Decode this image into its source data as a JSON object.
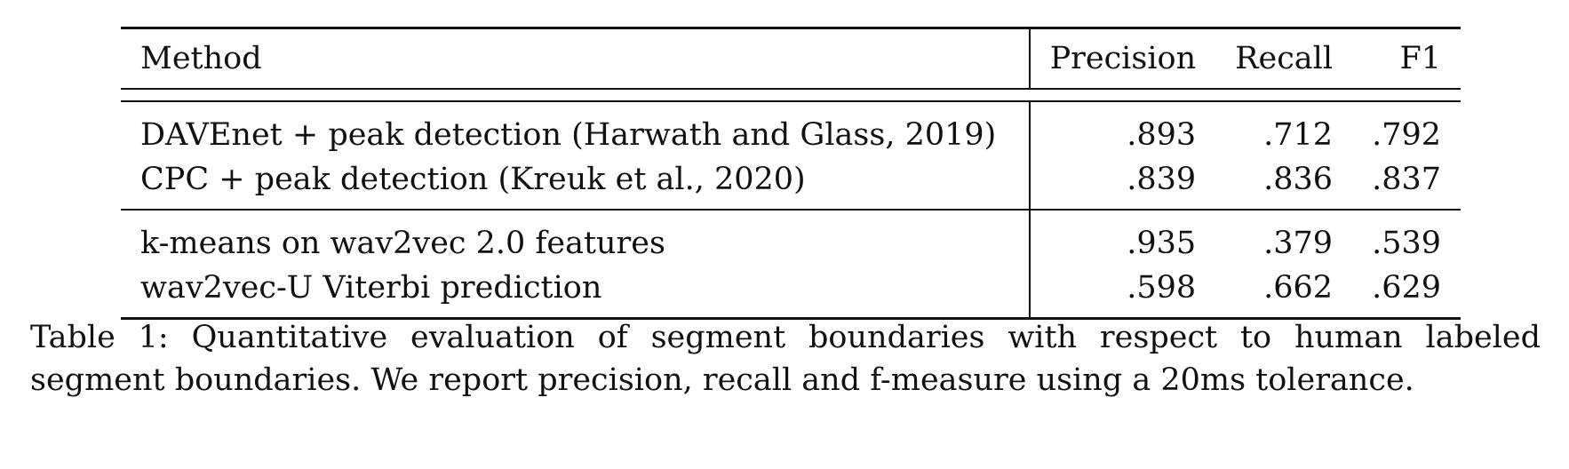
{
  "table": {
    "headers": [
      "Method",
      "Precision",
      "Recall",
      "F1"
    ],
    "groups": [
      [
        {
          "method": "DAVEnet + peak detection (Harwath and Glass, 2019)",
          "precision": ".893",
          "recall": ".712",
          "f1": ".792"
        },
        {
          "method": "CPC + peak detection (Kreuk et al., 2020)",
          "precision": ".839",
          "recall": ".836",
          "f1": ".837"
        }
      ],
      [
        {
          "method": "k-means on wav2vec 2.0 features",
          "precision": ".935",
          "recall": ".379",
          "f1": ".539"
        },
        {
          "method": "wav2vec-U Viterbi prediction",
          "precision": ".598",
          "recall": ".662",
          "f1": ".629"
        }
      ]
    ]
  },
  "caption": {
    "line1": "Table 1:  Quantitative evaluation of segment boundaries with respect to human labeled",
    "line2": "segment boundaries. We report precision, recall and f-measure using a 20ms tolerance."
  }
}
